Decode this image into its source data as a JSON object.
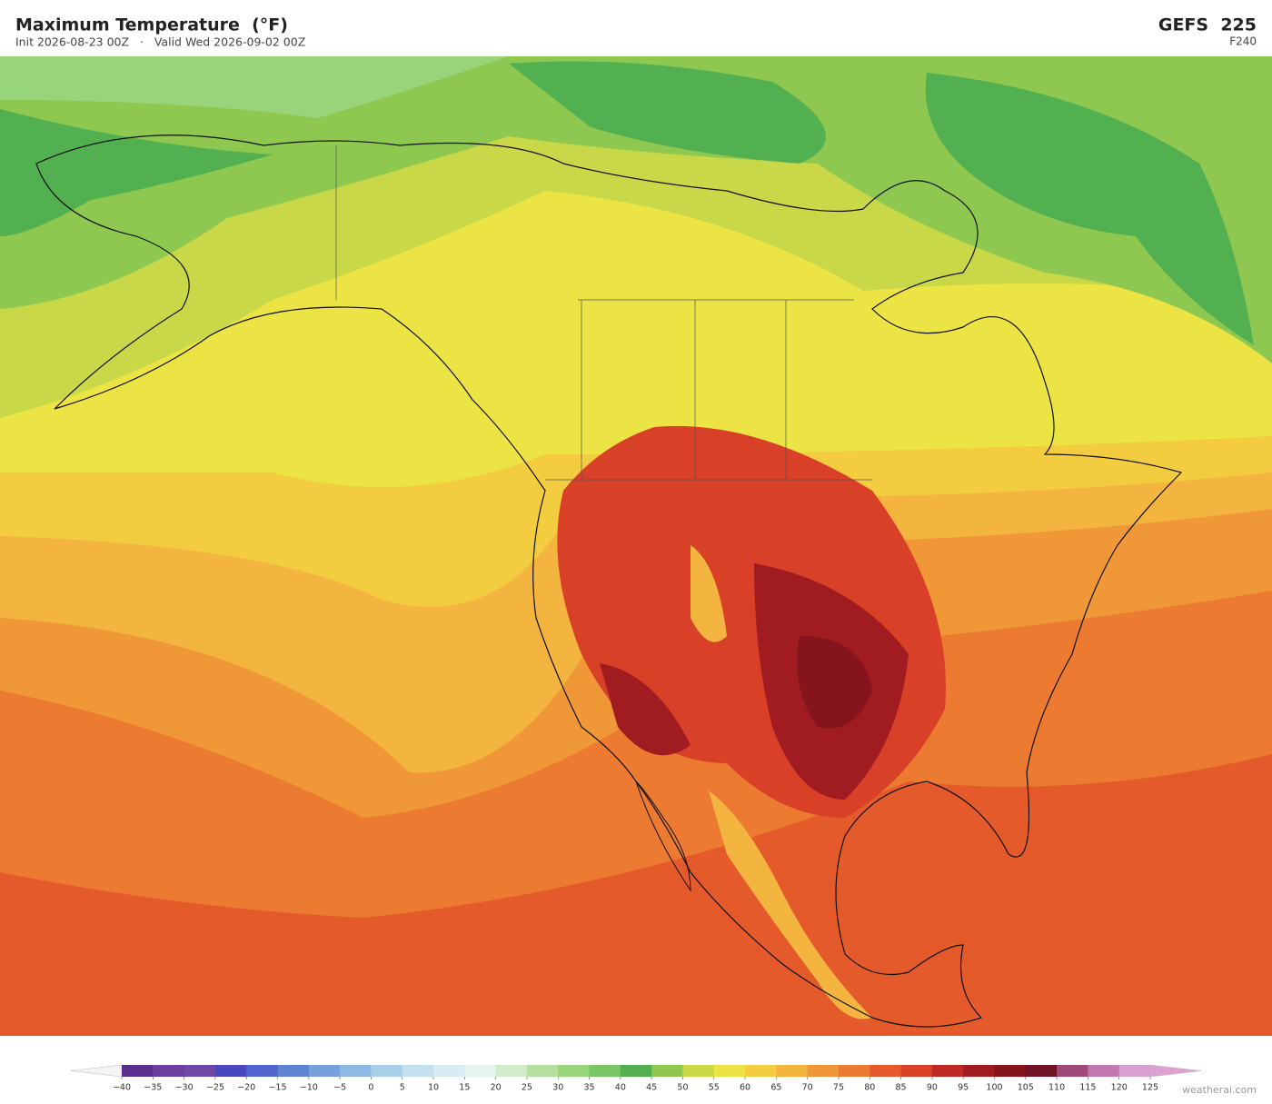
{
  "header": {
    "title": "Maximum Temperature  (°F)",
    "subtitle": "Init 2026-08-23 00Z   ·   Valid Wed 2026-09-02 00Z",
    "model": "GEFS  225",
    "forecast_hour": "F240"
  },
  "colorbar": {
    "ticks": [
      {
        "value": -40,
        "label": "−40"
      },
      {
        "value": -35,
        "label": "−35"
      },
      {
        "value": -30,
        "label": "−30"
      },
      {
        "value": -25,
        "label": "−25"
      },
      {
        "value": -20,
        "label": "−20"
      },
      {
        "value": -15,
        "label": "−15"
      },
      {
        "value": -10,
        "label": "−10"
      },
      {
        "value": -5,
        "label": "−5"
      },
      0,
      5,
      10,
      15,
      20,
      25,
      30,
      35,
      40,
      45,
      50,
      55,
      60,
      65,
      70,
      75,
      80,
      85,
      90,
      95,
      100,
      105,
      110,
      115,
      120,
      125
    ],
    "colors": [
      "#5b2d8e",
      "#6b3fa0",
      "#7048a8",
      "#4a48c0",
      "#4f64cc",
      "#5f84d4",
      "#78a0dc",
      "#8fb8e2",
      "#a8cfe8",
      "#c2e0ee",
      "#d8ecf2",
      "#e6f4ee",
      "#d0ecc8",
      "#b6e0a0",
      "#98d47a",
      "#78c664",
      "#52b050",
      "#8ec850",
      "#c8d848",
      "#ece445",
      "#f4cc40",
      "#f4b440",
      "#f09838",
      "#ec7a30",
      "#e45a2a",
      "#d84028",
      "#c02a24",
      "#a01c20",
      "#86141c",
      "#701428",
      "#a04a7a",
      "#c07ab0",
      "#d8a0cc"
    ],
    "under_color": "#f4f4f4",
    "over_color": "#dda0d0"
  },
  "watermark": "weatherai.com"
}
